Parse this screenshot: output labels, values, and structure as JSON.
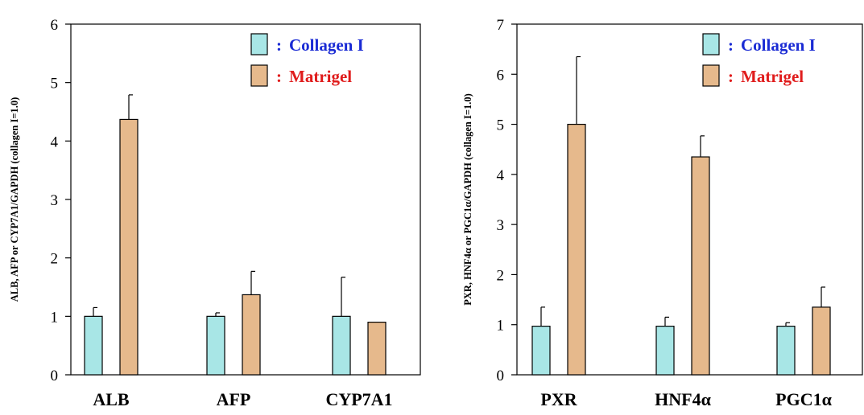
{
  "chart_data": [
    {
      "type": "bar",
      "ylabel": "ALB, AFP or CYP7A1/GAPDH (collagen I=1.0)",
      "ylim": [
        0,
        6
      ],
      "yticks": [
        0,
        1,
        2,
        3,
        4,
        5,
        6
      ],
      "categories": [
        "ALB",
        "AFP",
        "CYP7A1"
      ],
      "series": [
        {
          "name": "Collagen I",
          "values": [
            1.0,
            1.0,
            1.0
          ],
          "errors": [
            0.15,
            0.06,
            0.67
          ],
          "color": "#a8e6e6"
        },
        {
          "name": "Matrigel",
          "values": [
            4.37,
            1.37,
            0.9
          ],
          "errors": [
            0.42,
            0.4,
            0.0
          ],
          "color": "#e6b98c"
        }
      ],
      "legend": {
        "position": "top-right",
        "separator": ":",
        "items": [
          {
            "label": "Collagen I",
            "color": "#1a2bd4"
          },
          {
            "label": "Matrigel",
            "color": "#e01c1c"
          }
        ]
      }
    },
    {
      "type": "bar",
      "ylabel": "PXR, HNF4α or PGC1α/GAPDH (collagen I=1.0)",
      "ylim": [
        0,
        7
      ],
      "yticks": [
        0,
        1,
        2,
        3,
        4,
        5,
        6,
        7
      ],
      "categories": [
        "PXR",
        "HNF4α",
        "PGC1α"
      ],
      "series": [
        {
          "name": "Collagen I",
          "values": [
            0.97,
            0.97,
            0.97
          ],
          "errors": [
            0.38,
            0.18,
            0.07
          ],
          "color": "#a8e6e6"
        },
        {
          "name": "Matrigel",
          "values": [
            5.0,
            4.35,
            1.35
          ],
          "errors": [
            1.35,
            0.42,
            0.4
          ],
          "color": "#e6b98c"
        }
      ],
      "legend": {
        "position": "top-right",
        "separator": ":",
        "items": [
          {
            "label": "Collagen I",
            "color": "#1a2bd4"
          },
          {
            "label": "Matrigel",
            "color": "#e01c1c"
          }
        ]
      }
    }
  ]
}
